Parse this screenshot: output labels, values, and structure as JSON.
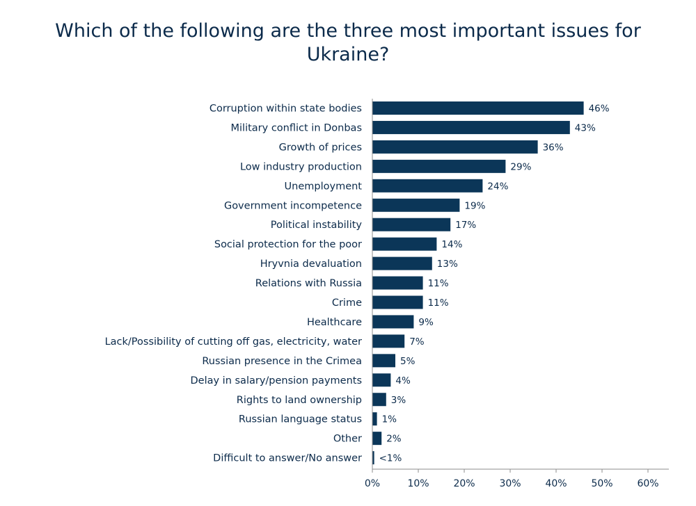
{
  "chart_data": {
    "type": "bar",
    "orientation": "horizontal",
    "title": "Which of the following are the three most important issues for Ukraine?",
    "categories": [
      "Corruption within state bodies",
      "Military conflict in Donbas",
      "Growth of prices",
      "Low industry production",
      "Unemployment",
      "Government incompetence",
      "Political instability",
      "Social protection for the poor",
      "Hryvnia devaluation",
      "Relations with Russia",
      "Crime",
      "Healthcare",
      "Lack/Possibility of cutting off gas, electricity, water",
      "Russian presence in the Crimea",
      "Delay in salary/pension payments",
      "Rights to land ownership",
      "Russian language status",
      "Other",
      "Difficult to answer/No answer"
    ],
    "values": [
      46,
      43,
      36,
      29,
      24,
      19,
      17,
      14,
      13,
      11,
      11,
      9,
      7,
      5,
      4,
      3,
      1,
      2,
      0.4
    ],
    "value_labels": [
      "46%",
      "43%",
      "36%",
      "29%",
      "24%",
      "19%",
      "17%",
      "14%",
      "13%",
      "11%",
      "11%",
      "9%",
      "7%",
      "5%",
      "4%",
      "3%",
      "1%",
      "2%",
      "<1%"
    ],
    "xlim": [
      0,
      60
    ],
    "xticks": [
      0,
      10,
      20,
      30,
      40,
      50,
      60
    ],
    "xtick_labels": [
      "0%",
      "10%",
      "20%",
      "30%",
      "40%",
      "50%",
      "60%"
    ],
    "xlabel": "",
    "ylabel": "",
    "grid": false,
    "legend": "none",
    "colors": {
      "bar": "#0b3658",
      "text": "#0b2a4a",
      "axis": "#8c8c8c"
    }
  }
}
